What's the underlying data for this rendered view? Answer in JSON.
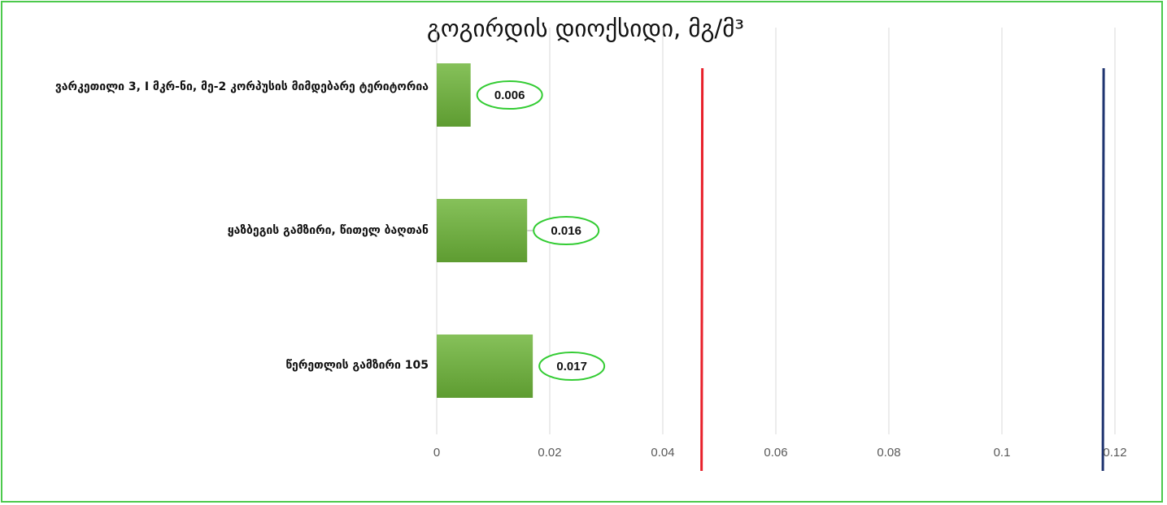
{
  "chart_data": {
    "type": "bar",
    "orientation": "horizontal",
    "title": "გოგირდის დიოქსიდი, მგ/მ³",
    "categories": [
      "ვარკეთილი 3, I მკრ-ნი, მე-2 კორპუსის მიმდებარე ტერიტორია",
      "ყაზბეგის გამზირი, წითელ ბაღთან",
      "წერეთლის გამზირი 105"
    ],
    "values": [
      0.006,
      0.016,
      0.017
    ],
    "data_labels": [
      "0.006",
      "0.016",
      "0.017"
    ],
    "xlim": [
      0,
      0.12
    ],
    "x_ticks": [
      "0",
      "0.02",
      "0.04",
      "0.06",
      "0.08",
      "0.1",
      "0.12"
    ],
    "reference_lines": [
      {
        "value": 0.047,
        "color": "#e8202a"
      },
      {
        "value": 0.118,
        "color": "#1f3470"
      }
    ],
    "grid": true,
    "legend": "none",
    "colors": {
      "bar": "#72b041",
      "data_label_border": "#33cc33",
      "frame_border": "#4cc94c",
      "gridline": "#d9d9d9",
      "tick_text": "#595959"
    }
  }
}
